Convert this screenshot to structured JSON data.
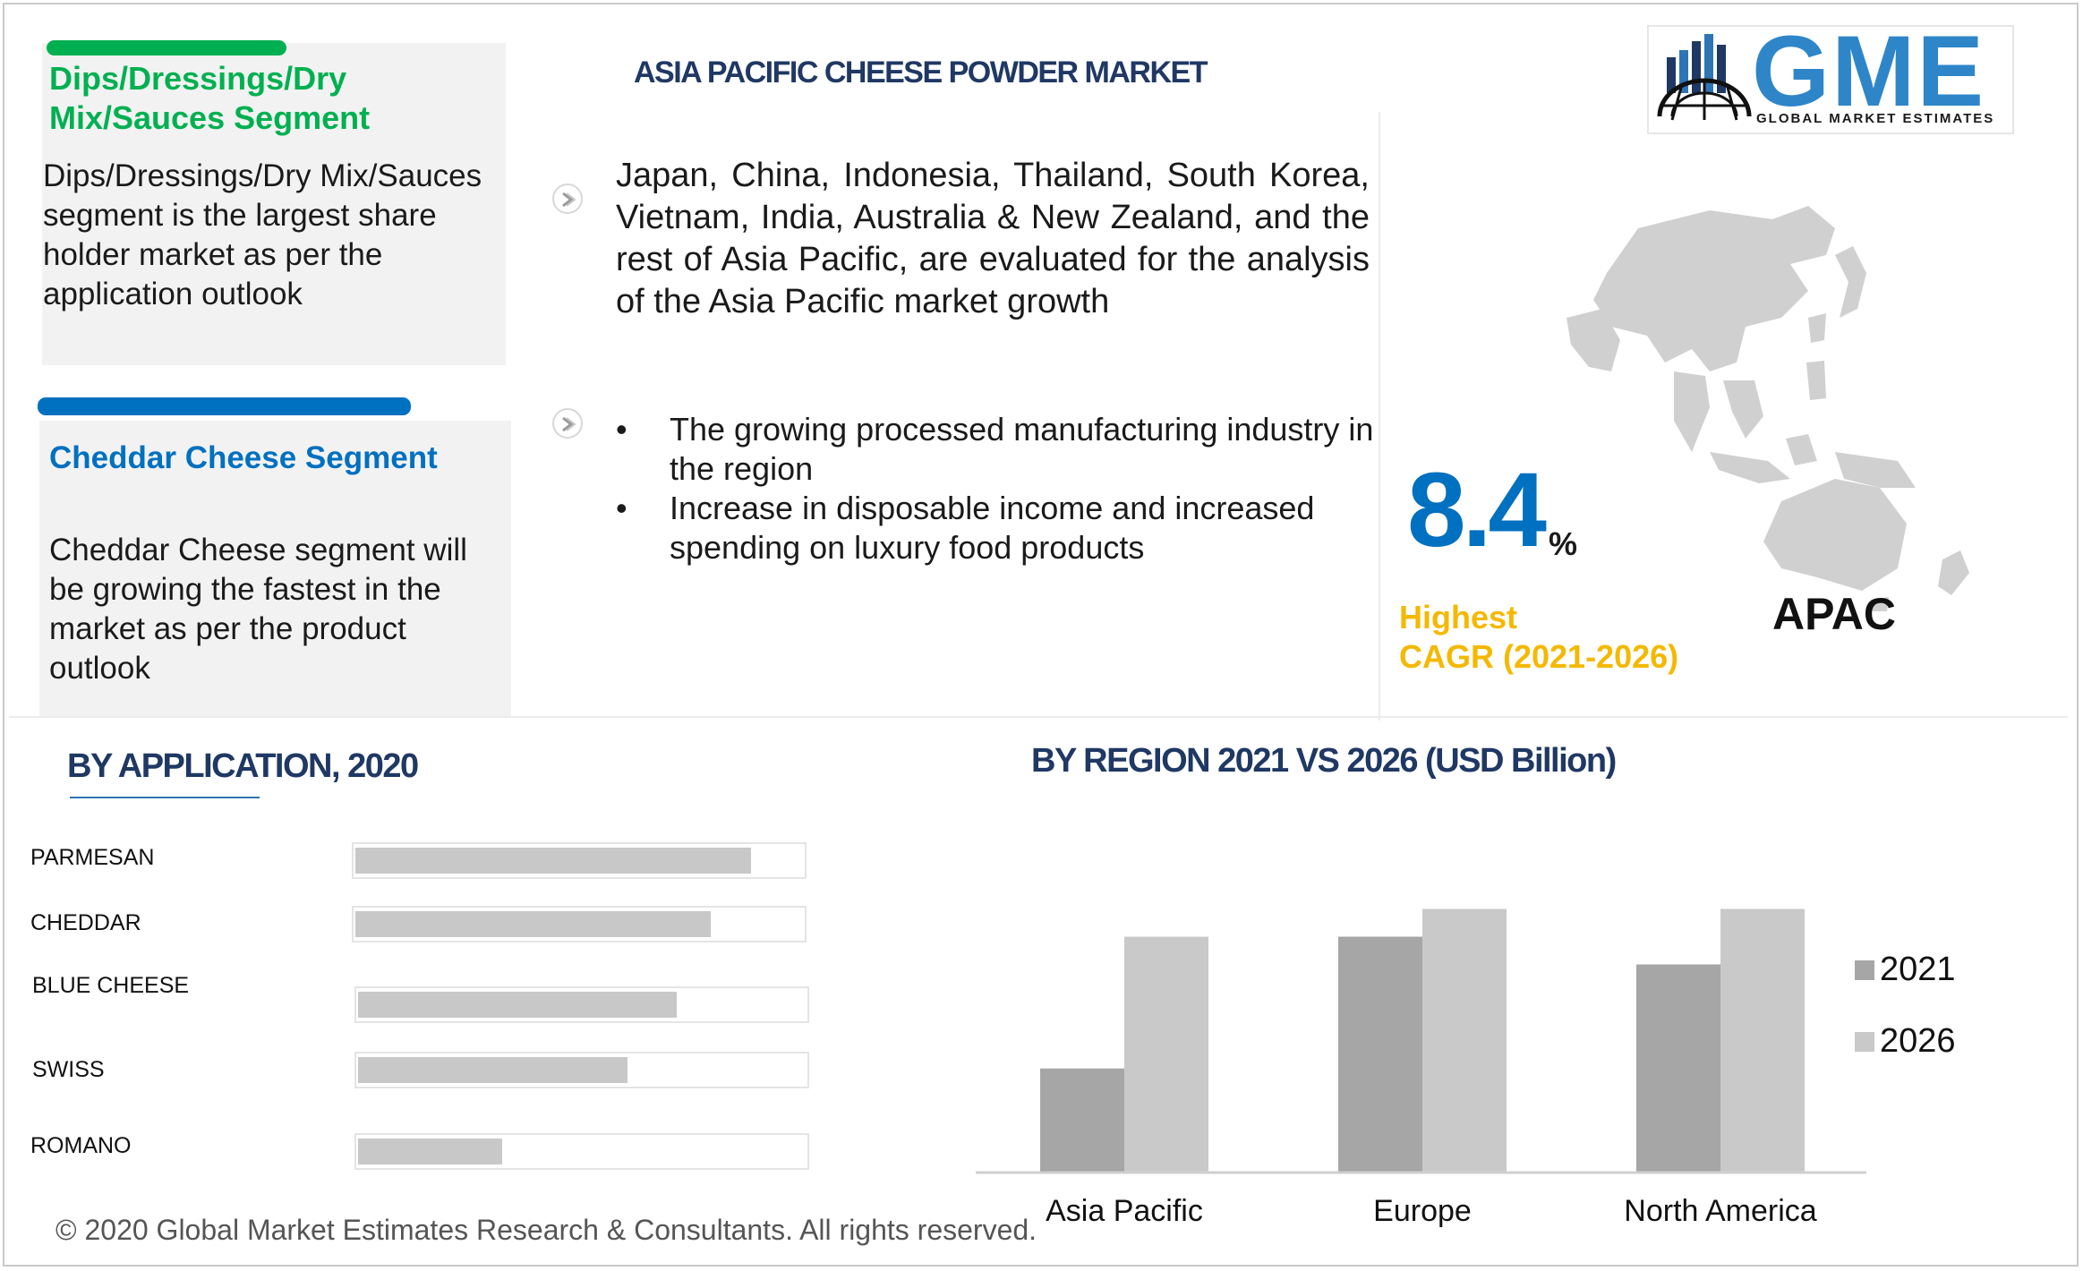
{
  "header": {
    "title": "ASIA PACIFIC CHEESE POWDER MARKET",
    "logo_text": "GME",
    "logo_subtitle": "GLOBAL MARKET ESTIMATES"
  },
  "cards": [
    {
      "title": "Dips/Dressings/Dry Mix/Sauces Segment",
      "text": "Dips/Dressings/Dry Mix/Sauces segment is the largest share holder market as per the application outlook",
      "accent": "#00b050"
    },
    {
      "title": "Cheddar Cheese Segment",
      "text": "Cheddar Cheese segment will be growing the fastest in the market as per the product outlook",
      "accent": "#0070c0"
    }
  ],
  "overview": {
    "paragraph": "Japan, China, Indonesia, Thailand, South Korea, Vietnam, India, Australia & New Zealand, and the rest of Asia Pacific, are evaluated for the analysis of the Asia Pacific market  growth",
    "bullets": [
      "The growing processed manufacturing industry in the region",
      "Increase in disposable income and increased spending on luxury food products"
    ],
    "bullet_symbol": "•"
  },
  "cagr": {
    "value": "8.4",
    "unit": "%",
    "label_line1": "Highest",
    "label_line2": "CAGR (2021-2026)",
    "region": "APAC"
  },
  "application_chart": {
    "title": "BY  APPLICATION, 2020"
  },
  "region_chart": {
    "title": "BY REGION 2021 VS 2026 (USD Billion)"
  },
  "chart_data": [
    {
      "type": "bar",
      "orientation": "horizontal",
      "title": "BY  APPLICATION, 2020",
      "categories": [
        "PARMESAN",
        "CHEDDAR",
        "BLUE CHEESE",
        "SWISS",
        "ROMANO"
      ],
      "values": [
        0.88,
        0.79,
        0.71,
        0.6,
        0.32
      ],
      "xlim": [
        0,
        1
      ],
      "axis_labels_shown": false
    },
    {
      "type": "bar",
      "title": "BY REGION 2021 VS 2026 (USD Billion)",
      "categories": [
        "Asia Pacific",
        "Europe",
        "North America"
      ],
      "series": [
        {
          "name": "2021",
          "values": [
            1.5,
            3.4,
            3.0
          ]
        },
        {
          "name": "2026",
          "values": [
            3.4,
            3.8,
            3.8
          ]
        }
      ],
      "ylim": [
        0,
        4.0
      ],
      "legend": "right",
      "colors": {
        "2021": "#a6a6a6",
        "2026": "#c9c9c9"
      }
    }
  ],
  "footer": {
    "copyright": "© 2020 Global Market Estimates Research & Consultants. All rights reserved."
  }
}
